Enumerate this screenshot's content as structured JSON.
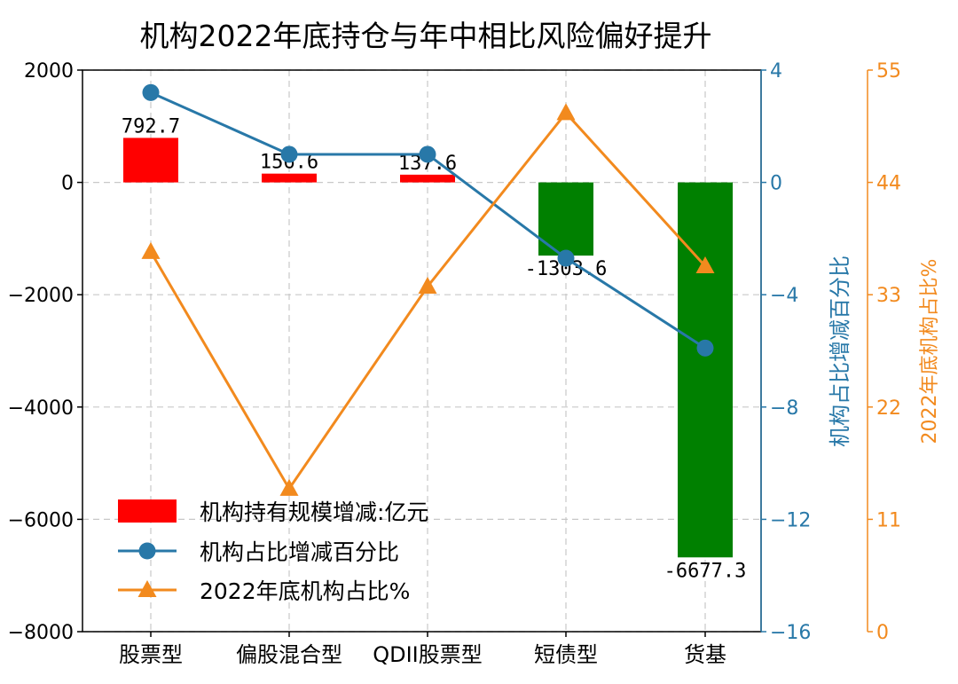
{
  "chart_data": {
    "type": "bar+line",
    "title": "机构2022年底持仓与年中相比风险偏好提升",
    "categories": [
      "股票型",
      "偏股混合型",
      "QDII股票型",
      "短债型",
      "货基"
    ],
    "bars": {
      "name": "机构持有规模增减:亿元",
      "values": [
        792.7,
        156.6,
        137.6,
        -1303.6,
        -6677.3
      ],
      "labels": [
        "792.7",
        "156.6",
        "137.6",
        "-1303.6",
        "-6677.3"
      ],
      "positive_color": "#ff0000",
      "negative_color": "#008000",
      "ylim": [
        -8000,
        2000
      ],
      "ticks": [
        -8000,
        -6000,
        -4000,
        -2000,
        0,
        2000
      ],
      "tick_labels": [
        "−8000",
        "−6000",
        "−4000",
        "−2000",
        "0",
        "2000"
      ]
    },
    "line_change": {
      "name": "机构占比增减百分比",
      "values": [
        3.2,
        1.0,
        1.0,
        -2.7,
        -5.9
      ],
      "color": "#2878a8",
      "marker": "circle",
      "ylabel": "机构占比增减百分比",
      "ylim": [
        -16,
        4
      ],
      "ticks": [
        -16,
        -12,
        -8,
        -4,
        0,
        4
      ],
      "tick_labels": [
        "−16",
        "−12",
        "−8",
        "−4",
        "0",
        "4"
      ]
    },
    "line_share": {
      "name": "2022年底机构占比%",
      "values": [
        37.2,
        14.0,
        33.8,
        50.8,
        35.8
      ],
      "color": "#f28a1e",
      "marker": "triangle",
      "ylabel": "2022年底机构占比%",
      "ylim": [
        0,
        55
      ],
      "ticks": [
        0,
        11,
        22,
        33,
        44,
        55
      ],
      "tick_labels": [
        "0",
        "11",
        "22",
        "33",
        "44",
        "55"
      ]
    },
    "grid": true,
    "legend_position": "lower-left"
  }
}
